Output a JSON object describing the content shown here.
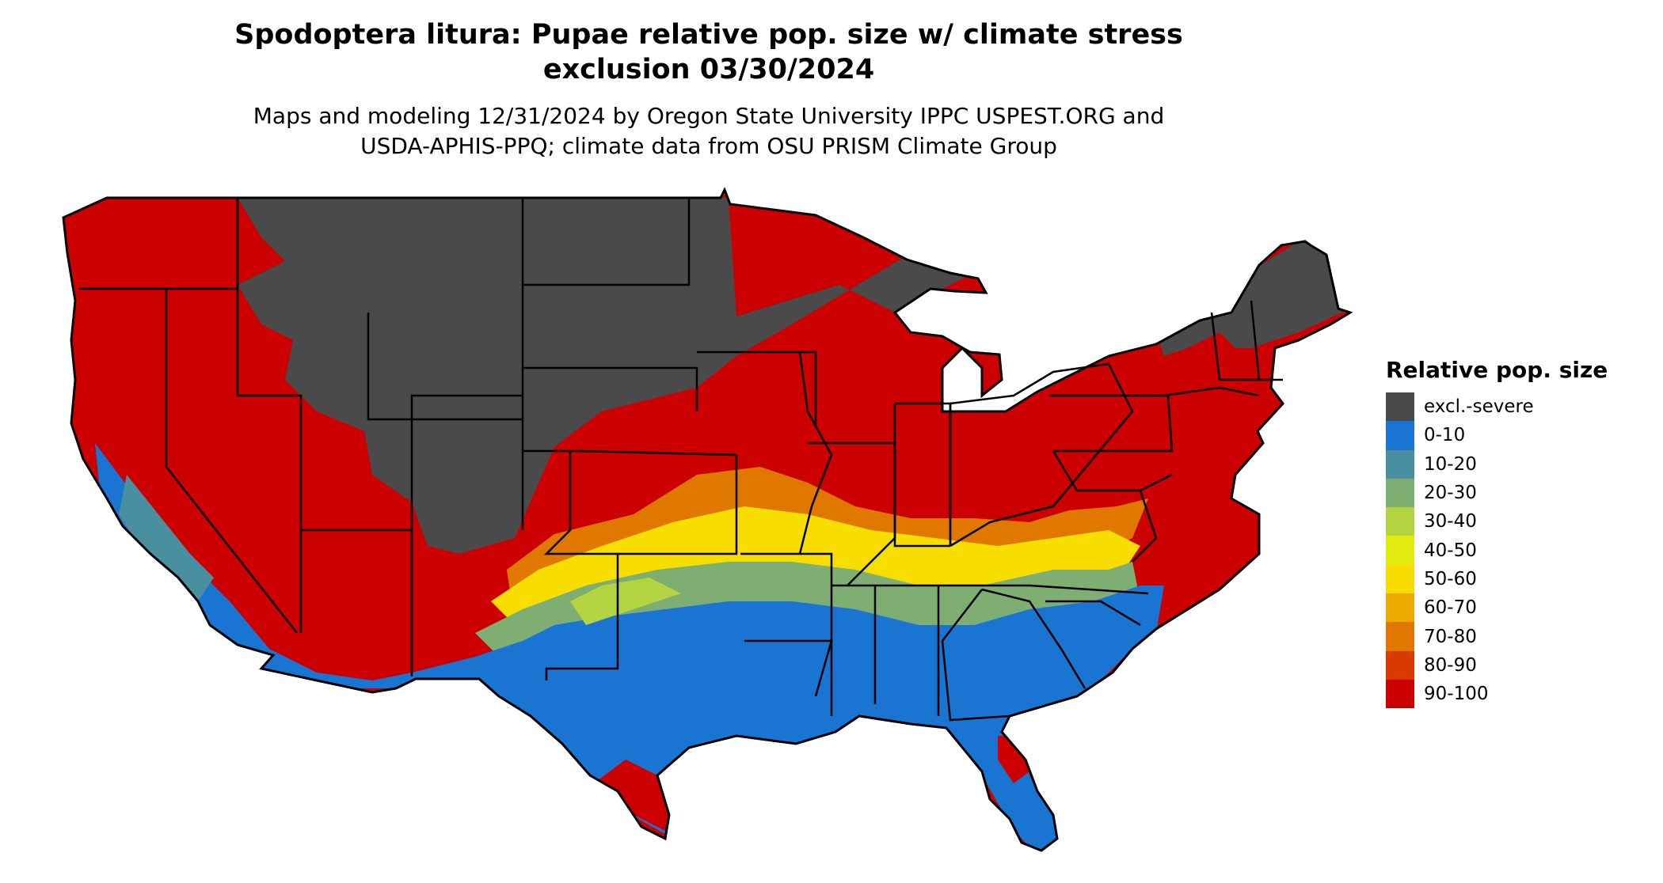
{
  "header": {
    "title_line1": "Spodoptera litura: Pupae relative pop. size w/ climate stress",
    "title_line2": "exclusion 03/30/2024",
    "subtitle_line1": "Maps and modeling 12/31/2024 by Oregon State University IPPC USPEST.ORG and",
    "subtitle_line2": "USDA-APHIS-PPQ; climate data from OSU PRISM Climate Group"
  },
  "legend": {
    "title": "Relative pop. size",
    "items": [
      {
        "label": "excl.-severe",
        "color": "#4a4a4a"
      },
      {
        "label": "0-10",
        "color": "#1a74d2"
      },
      {
        "label": "10-20",
        "color": "#4a8fa0"
      },
      {
        "label": "20-30",
        "color": "#7fae72"
      },
      {
        "label": "30-40",
        "color": "#b3d340"
      },
      {
        "label": "40-50",
        "color": "#e0ec10"
      },
      {
        "label": "50-60",
        "color": "#f7de00"
      },
      {
        "label": "60-70",
        "color": "#eeaa00"
      },
      {
        "label": "70-80",
        "color": "#e07800"
      },
      {
        "label": "80-90",
        "color": "#d83a00"
      },
      {
        "label": "90-100",
        "color": "#cc0000"
      }
    ]
  }
}
